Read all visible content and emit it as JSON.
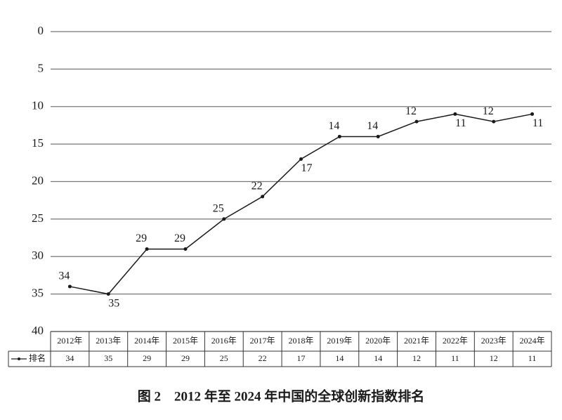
{
  "chart_data": {
    "type": "line",
    "title": "图 2　2012 年至 2024 年中国的全球创新指数排名",
    "categories": [
      "2012年",
      "2013年",
      "2014年",
      "2015年",
      "2016年",
      "2017年",
      "2018年",
      "2019年",
      "2020年",
      "2021年",
      "2022年",
      "2023年",
      "2024年"
    ],
    "series": [
      {
        "name": "排名",
        "color": "#1a1a1a",
        "values": [
          34,
          35,
          29,
          29,
          25,
          22,
          17,
          14,
          14,
          12,
          11,
          12,
          11
        ]
      }
    ],
    "ylim": [
      0,
      40
    ],
    "yticks": [
      0,
      5,
      10,
      15,
      20,
      25,
      30,
      35,
      40
    ],
    "y_reversed": true,
    "grid": true,
    "data_table": true
  }
}
